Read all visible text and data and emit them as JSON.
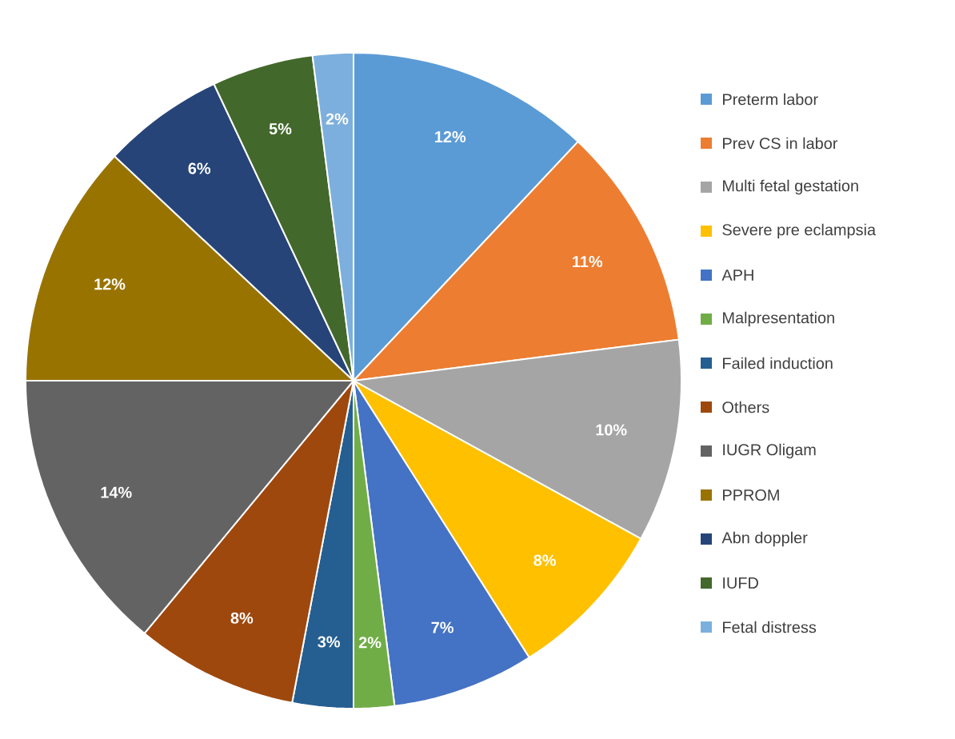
{
  "chart_data": {
    "type": "pie",
    "legend": "right",
    "categories": [
      "Preterm labor",
      "Prev CS in labor",
      "Multi fetal gestation",
      "Severe pre eclampsia",
      "APH",
      "Malpresentation",
      "Failed induction",
      "Others",
      "IUGR Oligam",
      "PPROM",
      "Abn doppler",
      "IUFD",
      "Fetal distress"
    ],
    "values": [
      12,
      11,
      10,
      8,
      7,
      2,
      3,
      8,
      14,
      12,
      6,
      5,
      2
    ],
    "value_labels": [
      "12%",
      "11%",
      "10%",
      "8%",
      "7%",
      "2%",
      "3%",
      "8%",
      "14%",
      "12%",
      "6%",
      "5%",
      "2%"
    ],
    "colors": [
      "#5b9bd5",
      "#ed7d31",
      "#a5a5a5",
      "#ffc000",
      "#4472c4",
      "#70ad47",
      "#255e91",
      "#9e480e",
      "#636363",
      "#997300",
      "#264478",
      "#43682b",
      "#7cafdd"
    ]
  }
}
